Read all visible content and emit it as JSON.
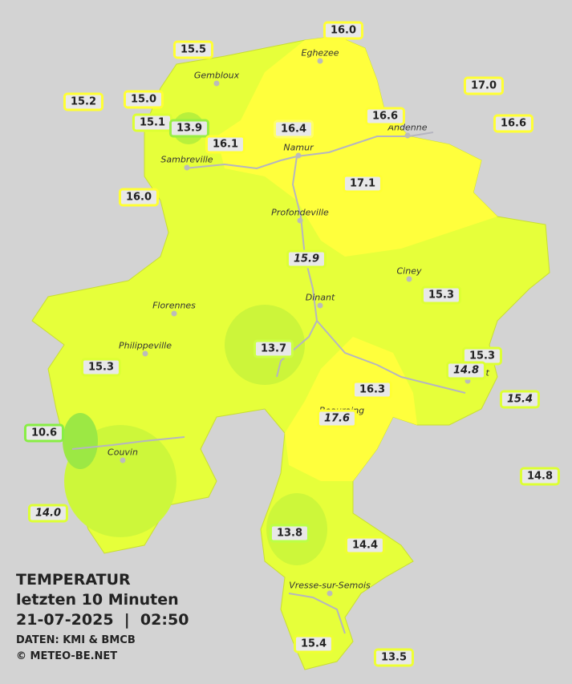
{
  "legend": {
    "title": "TEMPERATUR",
    "period": "letzten 10 Minuten",
    "datetime": "21-07-2025  |  02:50",
    "source": "DATEN: KMI & BMCB",
    "credit": "© METEO-BE.NET"
  },
  "cities": [
    "Eghezee",
    "Gembloux",
    "Andenne",
    "Namur",
    "Sambreville",
    "Profondeville",
    "Ciney",
    "Dinant",
    "Florennes",
    "Philippeville",
    "Rochefort",
    "Beauraing",
    "Couvin",
    "Vresse-sur-Semois"
  ],
  "stations": [
    {
      "value": "16.0",
      "border": "#ffff33"
    },
    {
      "value": "15.5",
      "border": "#ffff33"
    },
    {
      "value": "17.0",
      "border": "#ffff33"
    },
    {
      "value": "15.2",
      "border": "#ffff33"
    },
    {
      "value": "15.0",
      "border": "#ffff33"
    },
    {
      "value": "15.1",
      "border": "#ddff33"
    },
    {
      "value": "13.9",
      "border": "#99ee44"
    },
    {
      "value": "16.4",
      "border": "#ffff66"
    },
    {
      "value": "16.6",
      "border": "#ffff33"
    },
    {
      "value": "16.6",
      "border": "#ffff33"
    },
    {
      "value": "16.1",
      "border": "#ffff33"
    },
    {
      "value": "17.1",
      "border": "#ffff33"
    },
    {
      "value": "16.0",
      "border": "#ffff33"
    },
    {
      "value": "15.9",
      "border": "#ddff33",
      "italic": true
    },
    {
      "value": "15.3",
      "border": "#ddff33"
    },
    {
      "value": "13.7",
      "border": "#ccff44"
    },
    {
      "value": "15.3",
      "border": "#ddff33"
    },
    {
      "value": "14.8",
      "border": "#ddff33",
      "italic": true
    },
    {
      "value": "15.3",
      "border": "#ddff33"
    },
    {
      "value": "16.3",
      "border": "#ffff33"
    },
    {
      "value": "15.4",
      "border": "#ddff33",
      "italic": true
    },
    {
      "value": "17.6",
      "border": "#ffff33",
      "italic": true
    },
    {
      "value": "10.6",
      "border": "#88ee44"
    },
    {
      "value": "14.8",
      "border": "#ddff33"
    },
    {
      "value": "14.0",
      "border": "#ddff33",
      "italic": true
    },
    {
      "value": "13.8",
      "border": "#bbff44"
    },
    {
      "value": "14.4",
      "border": "#eeff33"
    },
    {
      "value": "15.4",
      "border": "#eeff33"
    },
    {
      "value": "13.5",
      "border": "#eeff33"
    }
  ]
}
